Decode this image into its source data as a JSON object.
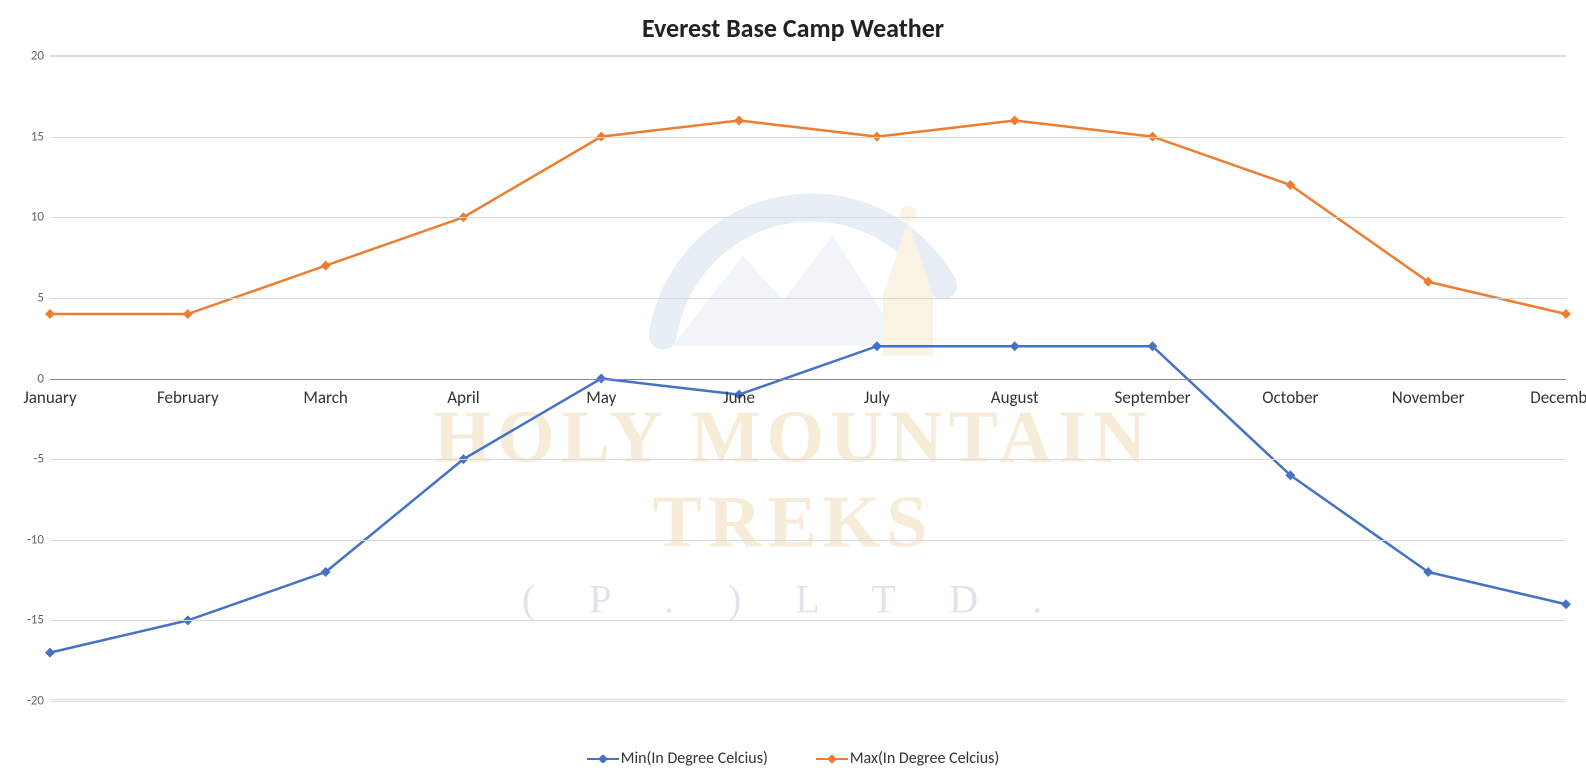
{
  "chart": {
    "type": "line",
    "title": "Everest Base Camp Weather",
    "title_fontsize": 26,
    "title_color": "#222222",
    "background_color": "#ffffff",
    "gridline_color": "#d9d9d9",
    "x_axis_color": "#888888",
    "x_label_fontsize": 17,
    "y_label_fontsize": 13,
    "y_label_color": "#666666",
    "categories": [
      "January",
      "February",
      "March",
      "April",
      "May",
      "June",
      "July",
      "August",
      "September",
      "October",
      "November",
      "December"
    ],
    "y_axis": {
      "min": -20,
      "max": 20,
      "tick_step": 5,
      "ticks": [
        -20,
        -15,
        -10,
        -5,
        0,
        5,
        10,
        15,
        20
      ]
    },
    "x_axis_at_y": 0,
    "series": [
      {
        "name": "Min(In Degree Celcius)",
        "color": "#4472c4",
        "line_width": 2.5,
        "marker_shape": "diamond",
        "marker_size": 6,
        "values": [
          -17,
          -15,
          -12,
          -5,
          0,
          -1,
          2,
          2,
          2,
          -6,
          -12,
          -14
        ]
      },
      {
        "name": "Max(In Degree Celcius)",
        "color": "#ed7d31",
        "line_width": 2.5,
        "marker_shape": "diamond",
        "marker_size": 6,
        "values": [
          4,
          4,
          7,
          10,
          15,
          16,
          15,
          16,
          15,
          12,
          6,
          4
        ]
      }
    ],
    "legend": {
      "position": "bottom",
      "fontsize": 16
    }
  },
  "watermark": {
    "line1": "HOLY MOUNTAIN TREKS",
    "line2": "( P . )   L T D .",
    "text_color_main": "#d89a2b",
    "text_color_sub": "#5a6d8a",
    "graphic": {
      "arc_color": "#7ea6cf",
      "mountain_color": "#b3c7df",
      "stupa_color": "#e6c06b"
    }
  }
}
